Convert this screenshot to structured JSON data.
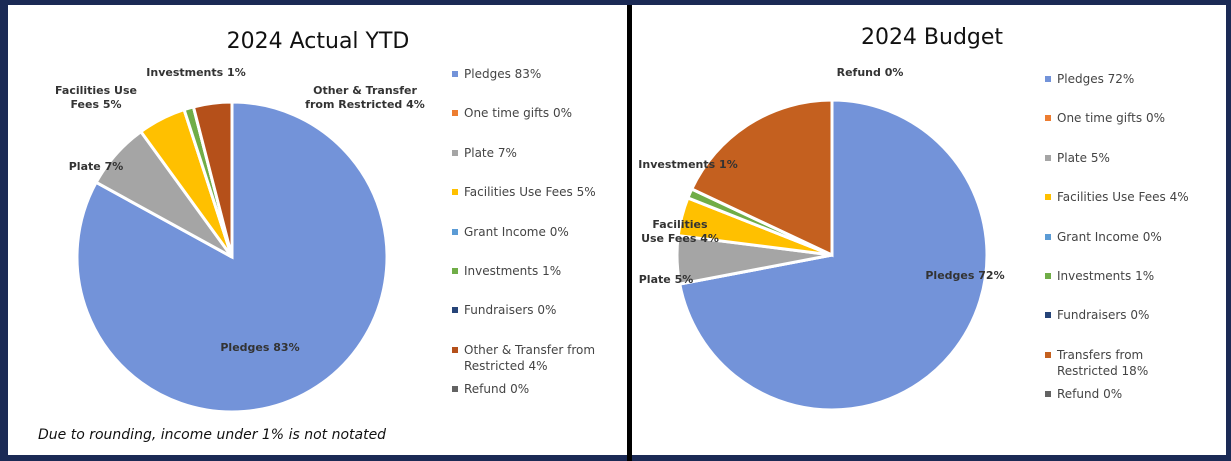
{
  "chart_data": [
    {
      "type": "pie",
      "title": "2024 Actual YTD",
      "categories": [
        "Pledges",
        "One time gifts",
        "Plate",
        "Facilities Use Fees",
        "Grant Income",
        "Investments",
        "Fundraisers",
        "Other & Transfer from Restricted",
        "Refund"
      ],
      "values": [
        83,
        0,
        7,
        5,
        0,
        1,
        0,
        4,
        0
      ],
      "value_labels": [
        "83%",
        "0%",
        "7%",
        "5%",
        "0%",
        "1%",
        "0%",
        "4%",
        "0%"
      ],
      "colors": [
        "#7393d9",
        "#ed7d31",
        "#a5a5a5",
        "#ffc000",
        "#5b9bd5",
        "#70ad47",
        "#264478",
        "#b5501a",
        "#636363"
      ],
      "legend": "right",
      "note": "Due to rounding, income under 1% is not notated"
    },
    {
      "type": "pie",
      "title": "2024 Budget",
      "categories": [
        "Pledges",
        "One time gifts",
        "Plate",
        "Facilities Use Fees",
        "Grant Income",
        "Investments",
        "Fundraisers",
        "Transfers from Restricted",
        "Refund"
      ],
      "values": [
        72,
        0,
        5,
        4,
        0,
        1,
        0,
        18,
        0
      ],
      "value_labels": [
        "72%",
        "0%",
        "5%",
        "4%",
        "0%",
        "1%",
        "0%",
        "18%",
        "0%"
      ],
      "colors": [
        "#7393d9",
        "#ed7d31",
        "#a5a5a5",
        "#ffc000",
        "#5b9bd5",
        "#70ad47",
        "#264478",
        "#c4601f",
        "#636363"
      ],
      "legend": "right"
    }
  ]
}
